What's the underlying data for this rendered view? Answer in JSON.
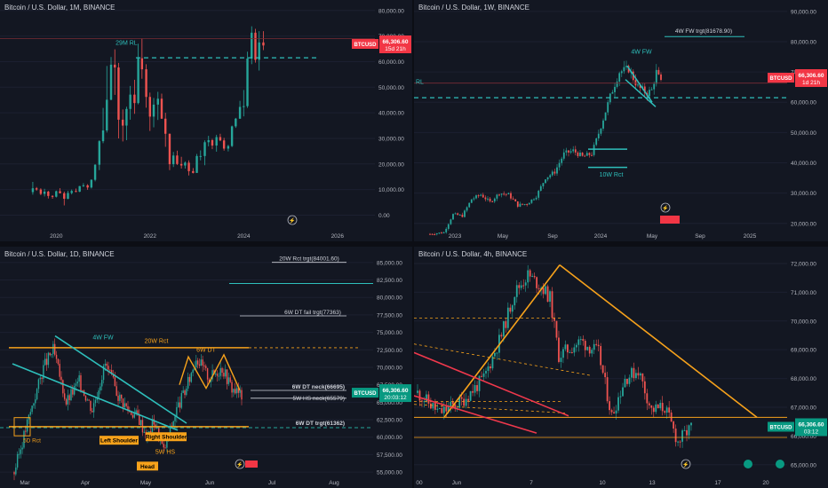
{
  "colors": {
    "bg": "#131722",
    "up": "#26a69a",
    "down": "#ef5350",
    "teal": "#2ebfbb",
    "orange": "#f7a21b",
    "red": "#f0384c",
    "axis_text": "#b2b5be",
    "white": "#d1d4dc"
  },
  "chart_data": [
    {
      "type": "candlestick",
      "title": "Bitcoin / U.S. Dollar, 1M, BINANCE",
      "symbol": "BTCUSD",
      "price_label": "66,306.60",
      "timer_label": "15d 21h",
      "x_ticks": [
        "2020",
        "2022",
        "2024",
        "2026"
      ],
      "y_ticks": [
        "80,000.00",
        "70,000.00",
        "60,000.00",
        "50,000.00",
        "40,000.00",
        "30,000.00",
        "20,000.00",
        "10,000.00",
        "0.00"
      ],
      "ylim": [
        -4000,
        82000
      ],
      "xlim": [
        2018.8,
        2026.8
      ],
      "hlines": [
        {
          "value": 61500,
          "style": "dashed",
          "color": "teal"
        },
        {
          "value": 69000,
          "style": "solid",
          "color": "red"
        }
      ],
      "annotations": [
        {
          "text": "29M RL",
          "x": 2021.5,
          "y": 66500,
          "color": "teal"
        }
      ],
      "ohlc_monthly": [
        {
          "t": 2019.5,
          "o": 9000,
          "h": 13000,
          "l": 8000,
          "c": 10500
        },
        {
          "t": 2019.58,
          "o": 10500,
          "h": 11000,
          "l": 9500,
          "c": 10000
        },
        {
          "t": 2019.67,
          "o": 10000,
          "h": 10500,
          "l": 7800,
          "c": 8300
        },
        {
          "t": 2019.75,
          "o": 8300,
          "h": 10300,
          "l": 7300,
          "c": 9200
        },
        {
          "t": 2019.83,
          "o": 9200,
          "h": 9500,
          "l": 6500,
          "c": 7500
        },
        {
          "t": 2019.92,
          "o": 7500,
          "h": 7800,
          "l": 6400,
          "c": 7200
        },
        {
          "t": 2020.0,
          "o": 7200,
          "h": 9600,
          "l": 6900,
          "c": 9350
        },
        {
          "t": 2020.08,
          "o": 9350,
          "h": 10500,
          "l": 8500,
          "c": 8550
        },
        {
          "t": 2020.17,
          "o": 8550,
          "h": 9200,
          "l": 3800,
          "c": 6400
        },
        {
          "t": 2020.25,
          "o": 6400,
          "h": 9500,
          "l": 6200,
          "c": 8650
        },
        {
          "t": 2020.33,
          "o": 8650,
          "h": 10000,
          "l": 8100,
          "c": 9450
        },
        {
          "t": 2020.42,
          "o": 9450,
          "h": 10400,
          "l": 8900,
          "c": 9150
        },
        {
          "t": 2020.5,
          "o": 9150,
          "h": 11400,
          "l": 9000,
          "c": 11350
        },
        {
          "t": 2020.58,
          "o": 11350,
          "h": 12500,
          "l": 11000,
          "c": 11650
        },
        {
          "t": 2020.67,
          "o": 11650,
          "h": 12100,
          "l": 9900,
          "c": 10800
        },
        {
          "t": 2020.75,
          "o": 10800,
          "h": 14000,
          "l": 10400,
          "c": 13800
        },
        {
          "t": 2020.83,
          "o": 13800,
          "h": 19900,
          "l": 13200,
          "c": 19700
        },
        {
          "t": 2020.92,
          "o": 19700,
          "h": 29300,
          "l": 17600,
          "c": 28900
        },
        {
          "t": 2021.0,
          "o": 28900,
          "h": 41900,
          "l": 28100,
          "c": 33100
        },
        {
          "t": 2021.08,
          "o": 33100,
          "h": 58300,
          "l": 32300,
          "c": 45100
        },
        {
          "t": 2021.17,
          "o": 45100,
          "h": 61800,
          "l": 44900,
          "c": 58800
        },
        {
          "t": 2021.25,
          "o": 58800,
          "h": 64800,
          "l": 47000,
          "c": 57700
        },
        {
          "t": 2021.33,
          "o": 57700,
          "h": 59500,
          "l": 30000,
          "c": 37300
        },
        {
          "t": 2021.42,
          "o": 37300,
          "h": 41300,
          "l": 28800,
          "c": 35000
        },
        {
          "t": 2021.5,
          "o": 35000,
          "h": 42400,
          "l": 29300,
          "c": 41500
        },
        {
          "t": 2021.58,
          "o": 41500,
          "h": 50500,
          "l": 37300,
          "c": 47100
        },
        {
          "t": 2021.67,
          "o": 47100,
          "h": 52900,
          "l": 39600,
          "c": 43800
        },
        {
          "t": 2021.75,
          "o": 43800,
          "h": 67000,
          "l": 43300,
          "c": 61300
        },
        {
          "t": 2021.83,
          "o": 61300,
          "h": 69000,
          "l": 53300,
          "c": 57000
        },
        {
          "t": 2021.92,
          "o": 57000,
          "h": 59000,
          "l": 42000,
          "c": 46200
        },
        {
          "t": 2022.0,
          "o": 46200,
          "h": 47900,
          "l": 32900,
          "c": 38500
        },
        {
          "t": 2022.08,
          "o": 38500,
          "h": 45800,
          "l": 34300,
          "c": 43200
        },
        {
          "t": 2022.17,
          "o": 43200,
          "h": 48200,
          "l": 37200,
          "c": 45500
        },
        {
          "t": 2022.25,
          "o": 45500,
          "h": 47500,
          "l": 37600,
          "c": 37700
        },
        {
          "t": 2022.33,
          "o": 37700,
          "h": 40000,
          "l": 26700,
          "c": 31800
        },
        {
          "t": 2022.42,
          "o": 31800,
          "h": 31900,
          "l": 17600,
          "c": 19900
        },
        {
          "t": 2022.5,
          "o": 19900,
          "h": 24700,
          "l": 18800,
          "c": 23300
        },
        {
          "t": 2022.58,
          "o": 23300,
          "h": 25200,
          "l": 19600,
          "c": 20000
        },
        {
          "t": 2022.67,
          "o": 20000,
          "h": 22800,
          "l": 18200,
          "c": 19400
        },
        {
          "t": 2022.75,
          "o": 19400,
          "h": 21000,
          "l": 18200,
          "c": 20500
        },
        {
          "t": 2022.83,
          "o": 20500,
          "h": 21400,
          "l": 15500,
          "c": 17200
        },
        {
          "t": 2022.92,
          "o": 17200,
          "h": 18400,
          "l": 16300,
          "c": 16500
        },
        {
          "t": 2023.0,
          "o": 16500,
          "h": 23900,
          "l": 16500,
          "c": 23100
        },
        {
          "t": 2023.08,
          "o": 23100,
          "h": 25300,
          "l": 21400,
          "c": 23100
        },
        {
          "t": 2023.17,
          "o": 23100,
          "h": 29200,
          "l": 19500,
          "c": 28500
        },
        {
          "t": 2023.25,
          "o": 28500,
          "h": 31000,
          "l": 26900,
          "c": 29300
        },
        {
          "t": 2023.33,
          "o": 29300,
          "h": 29800,
          "l": 25800,
          "c": 27200
        },
        {
          "t": 2023.42,
          "o": 27200,
          "h": 31400,
          "l": 24800,
          "c": 30500
        },
        {
          "t": 2023.5,
          "o": 30500,
          "h": 31800,
          "l": 28900,
          "c": 29200
        },
        {
          "t": 2023.58,
          "o": 29200,
          "h": 30200,
          "l": 25200,
          "c": 26000
        },
        {
          "t": 2023.67,
          "o": 26000,
          "h": 27500,
          "l": 24900,
          "c": 27000
        },
        {
          "t": 2023.75,
          "o": 27000,
          "h": 35000,
          "l": 26600,
          "c": 34700
        },
        {
          "t": 2023.83,
          "o": 34700,
          "h": 38000,
          "l": 34100,
          "c": 37700
        },
        {
          "t": 2023.92,
          "o": 37700,
          "h": 44700,
          "l": 37600,
          "c": 42300
        },
        {
          "t": 2024.0,
          "o": 42300,
          "h": 48900,
          "l": 38600,
          "c": 42600
        },
        {
          "t": 2024.08,
          "o": 42600,
          "h": 63900,
          "l": 41900,
          "c": 61200
        },
        {
          "t": 2024.17,
          "o": 61200,
          "h": 73800,
          "l": 59000,
          "c": 71300
        },
        {
          "t": 2024.25,
          "o": 71300,
          "h": 72800,
          "l": 59600,
          "c": 60700
        },
        {
          "t": 2024.33,
          "o": 60700,
          "h": 71900,
          "l": 56500,
          "c": 67500
        },
        {
          "t": 2024.42,
          "o": 67500,
          "h": 71900,
          "l": 64500,
          "c": 66300
        }
      ]
    },
    {
      "type": "candlestick",
      "title": "Bitcoin / U.S. Dollar, 1W, BINANCE",
      "symbol": "BTCUSD",
      "price_label": "66,306.60",
      "timer_label": "1d 21h",
      "x_ticks": [
        "2023",
        "May",
        "Sep",
        "2024",
        "May",
        "Sep",
        "2025"
      ],
      "y_ticks": [
        "90,000.00",
        "80,000.00",
        "70,000.00",
        "60,000.00",
        "50,000.00",
        "40,000.00",
        "30,000.00",
        "20,000.00"
      ],
      "ylim": [
        17000,
        92000
      ],
      "hlines": [
        {
          "value": 61500,
          "style": "dashed",
          "color": "teal"
        },
        {
          "value": 66306,
          "style": "solid",
          "color": "red"
        }
      ],
      "annotations": [
        {
          "text": "4W FW trgt(81678.90)",
          "color": "white"
        },
        {
          "text": "4W FW",
          "color": "teal"
        },
        {
          "text": "10W Rct",
          "color": "teal"
        },
        {
          "text": "RL",
          "color": "teal"
        }
      ],
      "rect_10w_rct": [
        38500,
        44500
      ],
      "fw_target": 81678.9
    },
    {
      "type": "candlestick",
      "title": "Bitcoin / U.S. Dollar, 1D, BINANCE",
      "symbol": "BTCUSD",
      "price_label": "66,306.60",
      "timer_label": "20:03:12",
      "x_ticks": [
        "Mar",
        "Apr",
        "May",
        "Jun",
        "Jul",
        "Aug"
      ],
      "y_ticks": [
        "85,000.00",
        "82,500.00",
        "80,000.00",
        "77,500.00",
        "75,000.00",
        "72,500.00",
        "70,000.00",
        "67,500.00",
        "65,000.00",
        "62,500.00",
        "60,000.00",
        "57,500.00",
        "55,000.00"
      ],
      "ylim": [
        54000,
        86500
      ],
      "levels": [
        {
          "text": "20W Rct trgt(84001.60)",
          "value": 84001.6
        },
        {
          "text": "6W DT fail trgt(77363)",
          "value": 77363
        },
        {
          "text": "6W DT neck(66695)",
          "value": 66695
        },
        {
          "text": "5W HS neck(65579)",
          "value": 65579
        },
        {
          "text": "6W DT trgt(61362)",
          "value": 61362
        }
      ],
      "labels": [
        "4W FW",
        "20W Rct",
        "6W DT",
        "5D Rct",
        "Left Shoulder",
        "Right Shoulder",
        "Head",
        "5W HS"
      ]
    },
    {
      "type": "candlestick",
      "title": "Bitcoin / U.S. Dollar, 4h, BINANCE",
      "symbol": "BTCUSD",
      "price_label": "66,306.60",
      "timer_label": "03:12",
      "x_ticks": [
        "00",
        "Jun",
        "7",
        "10",
        "13",
        "17",
        "20"
      ],
      "y_ticks": [
        "72,000.00",
        "71,000.00",
        "70,000.00",
        "69,000.00",
        "68,000.00",
        "67,000.00",
        "66,000.00",
        "65,000.00"
      ],
      "ylim": [
        64500,
        72400
      ],
      "hlines": [
        {
          "value": 66650,
          "style": "solid",
          "color": "orange"
        },
        {
          "value": 65950,
          "style": "solid",
          "color": "orange"
        }
      ]
    }
  ]
}
